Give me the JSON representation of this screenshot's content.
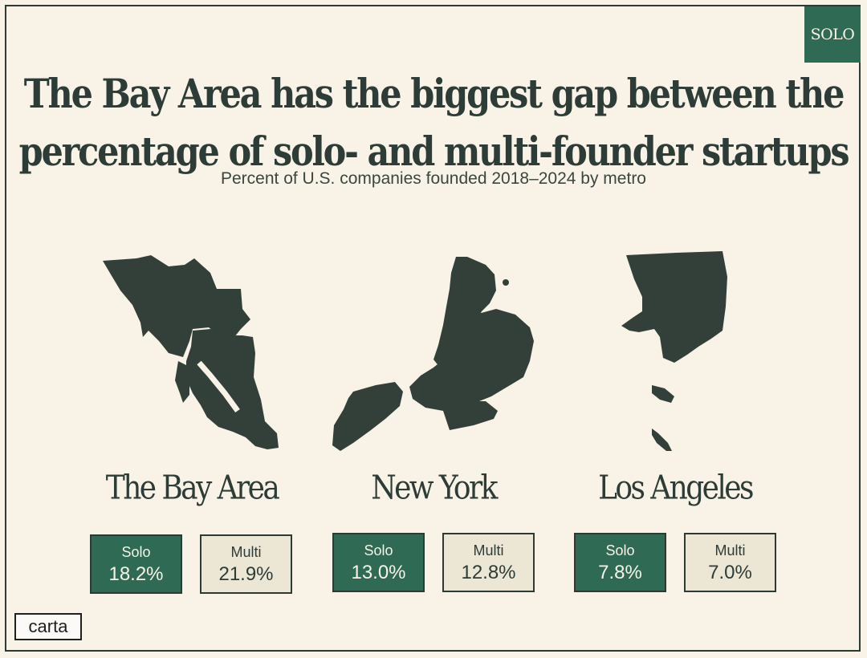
{
  "badge": "SOLO",
  "logo": "carta",
  "chart_data": {
    "type": "table",
    "title_lines": [
      "The Bay Area has the biggest gap between the",
      "percentage of solo- and multi-founder startups"
    ],
    "subtitle": "Percent of U.S. companies founded 2018–2024 by metro",
    "series_labels": {
      "solo": "Solo",
      "multi": "Multi"
    },
    "metros": [
      {
        "name": "The Bay Area",
        "solo": 18.2,
        "multi": 21.9,
        "solo_text": "18.2%",
        "multi_text": "21.9%"
      },
      {
        "name": "New York",
        "solo": 13.0,
        "multi": 12.8,
        "solo_text": "13.0%",
        "multi_text": "12.8%"
      },
      {
        "name": "Los Angeles",
        "solo": 7.8,
        "multi": 7.0,
        "solo_text": "7.8%",
        "multi_text": "7.0%"
      }
    ],
    "colors": {
      "solo": "#2f6a55",
      "multi": "#ece6d5",
      "map": "#334039",
      "background": "#f8f3e6"
    }
  }
}
